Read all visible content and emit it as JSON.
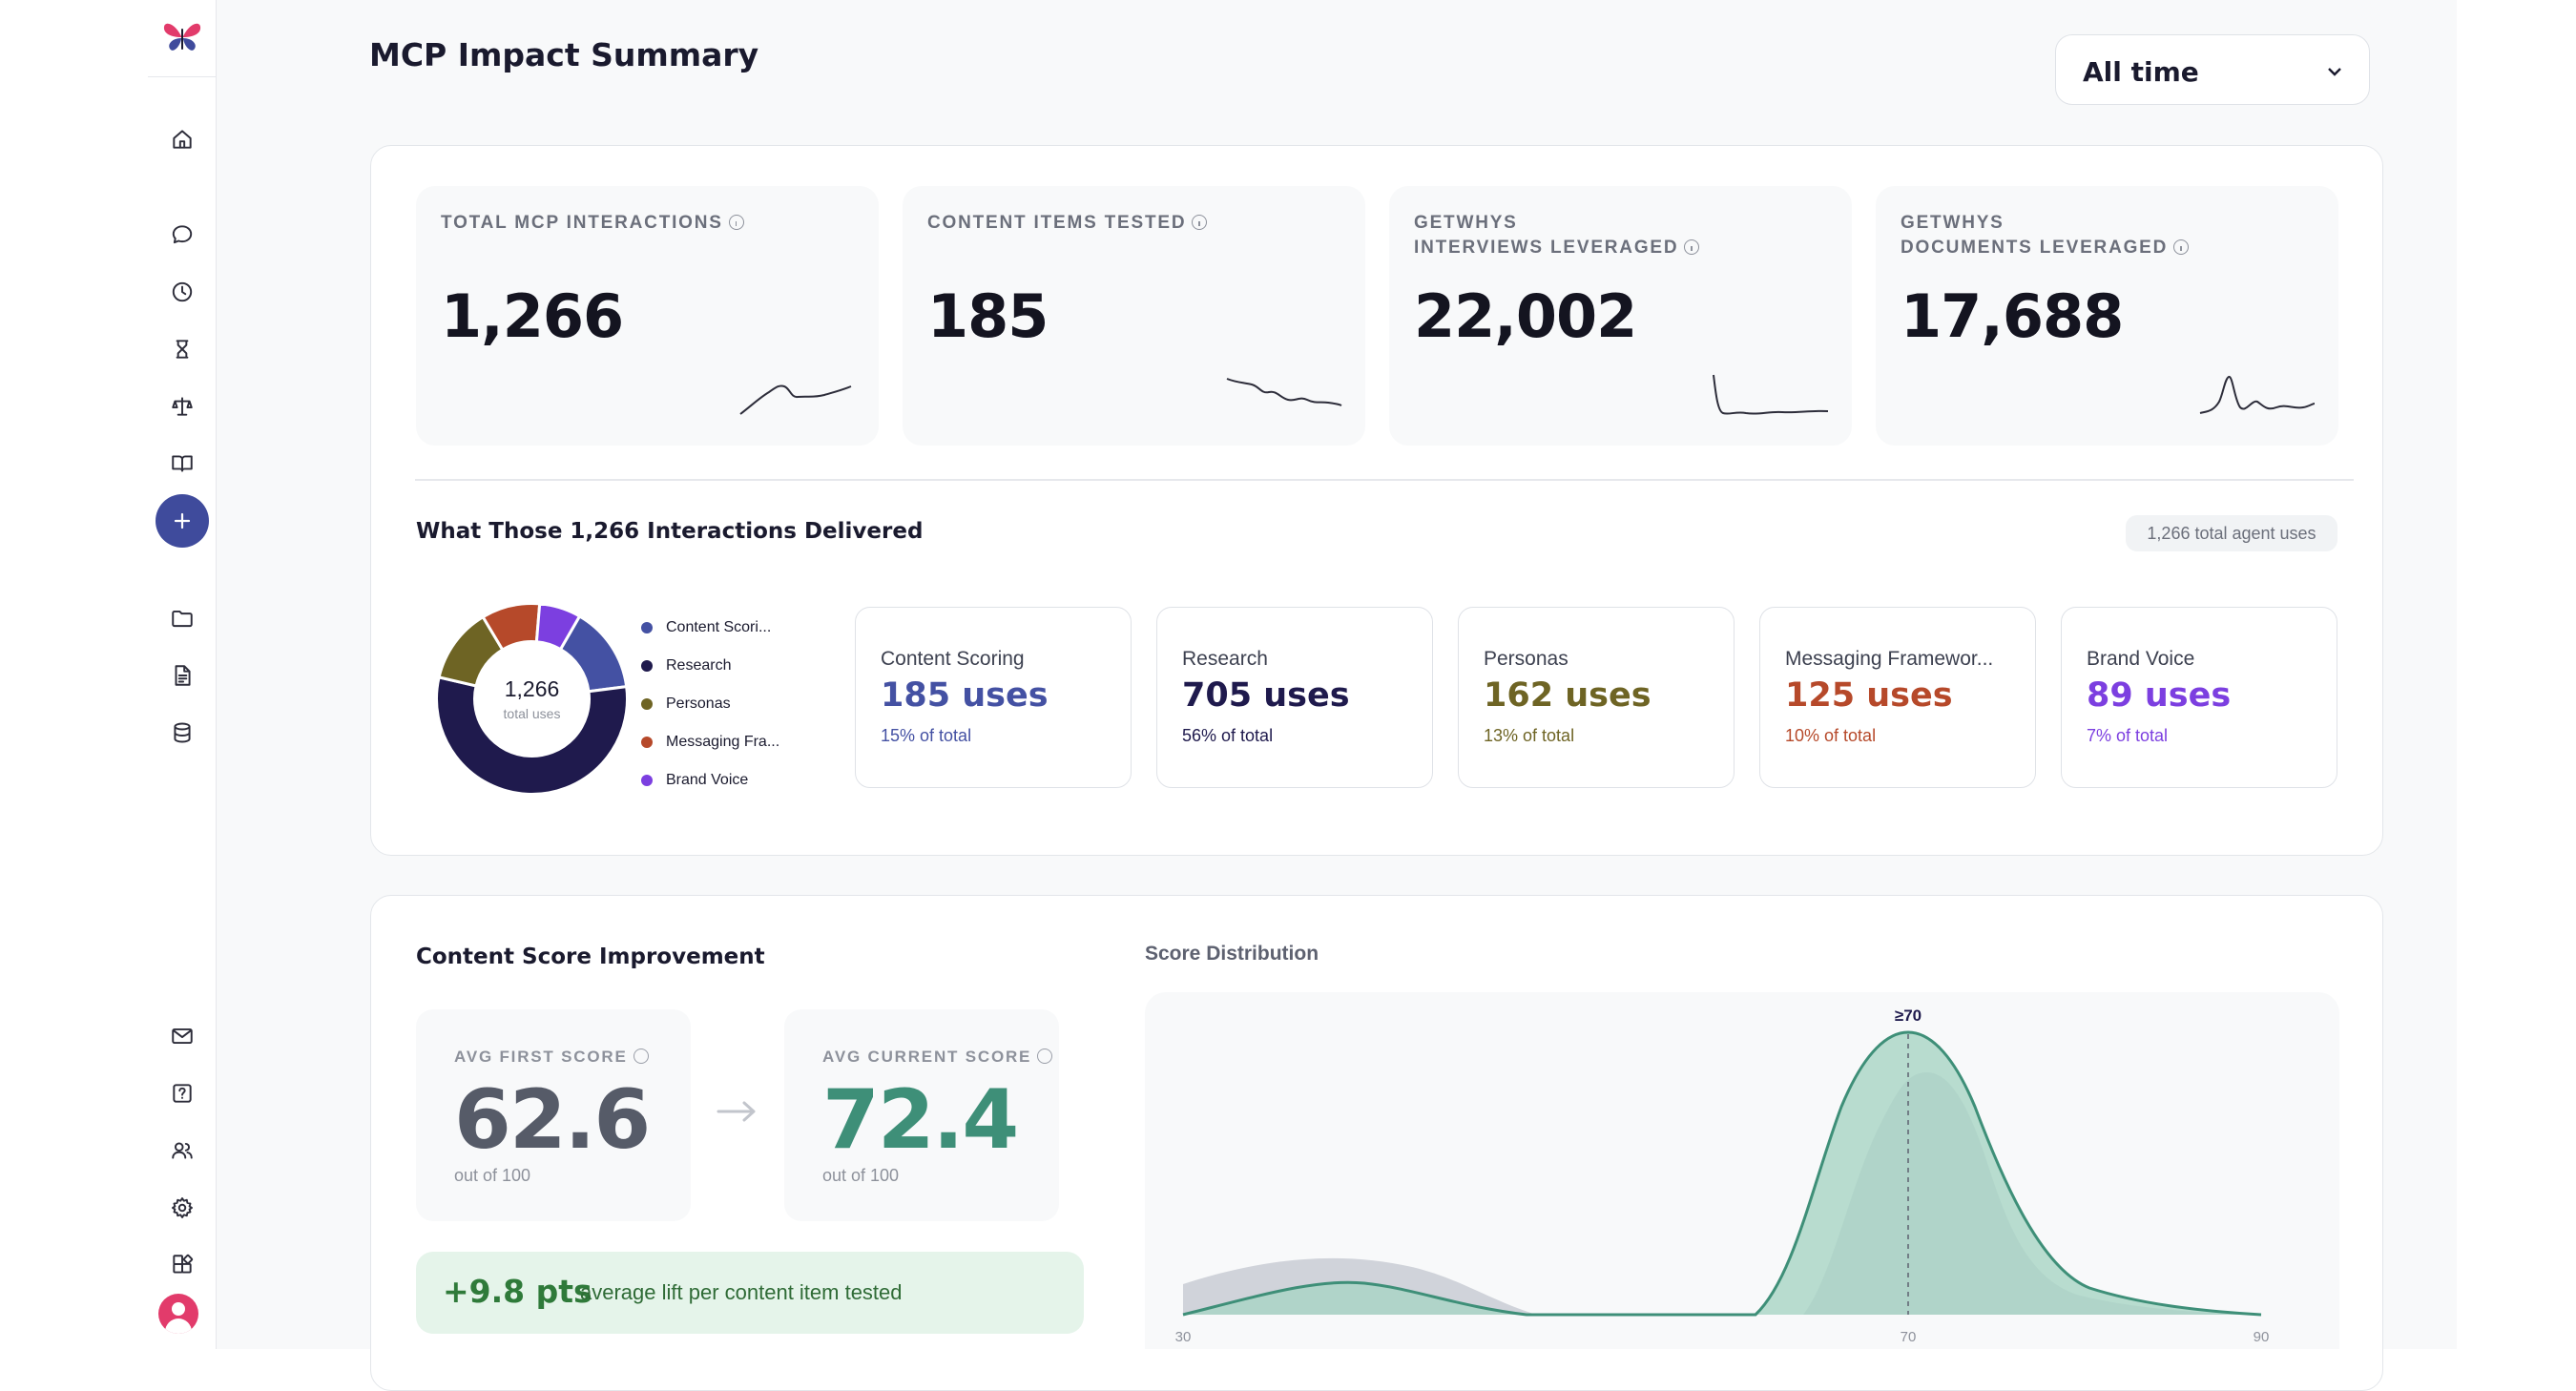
{
  "colors": {
    "scoring": "#4451a3",
    "research": "#1f1a4d",
    "personas": "#6e6424",
    "messaging": "#b6492a",
    "brand": "#7c3fe0",
    "teal": "#3e8f78",
    "gray_curve": "#c9ccd3"
  },
  "header": {
    "title": "MCP Impact Summary",
    "range_select": "All time"
  },
  "kpis": [
    {
      "label_line1": "TOTAL MCP INTERACTIONS",
      "label_line2": "",
      "value": "1,266"
    },
    {
      "label_line1": "CONTENT ITEMS TESTED",
      "label_line2": "",
      "value": "185"
    },
    {
      "label_line1": "GETWHYS",
      "label_line2": "INTERVIEWS LEVERAGED",
      "value": "22,002"
    },
    {
      "label_line1": "GETWHYS",
      "label_line2": "DOCUMENTS LEVERAGED",
      "value": "17,688"
    }
  ],
  "delivered": {
    "title": "What Those 1,266 Interactions Delivered",
    "chip": "1,266 total agent uses",
    "donut_total": "1,266",
    "donut_sub": "total uses",
    "legend": [
      "Content Scori...",
      "Research",
      "Personas",
      "Messaging Fra...",
      "Brand Voice"
    ],
    "cards": [
      {
        "title": "Content Scoring",
        "uses": "185 uses",
        "pct": "15% of total",
        "count": 185
      },
      {
        "title": "Research",
        "uses": "705 uses",
        "pct": "56% of total",
        "count": 705
      },
      {
        "title": "Personas",
        "uses": "162 uses",
        "pct": "13% of total",
        "count": 162
      },
      {
        "title": "Messaging Framewor...",
        "uses": "125 uses",
        "pct": "10% of total",
        "count": 125
      },
      {
        "title": "Brand Voice",
        "uses": "89 uses",
        "pct": "7% of total",
        "count": 89
      }
    ]
  },
  "score": {
    "title": "Content Score Improvement",
    "first_label": "AVG FIRST SCORE",
    "first_value": "62.6",
    "current_label": "AVG CURRENT SCORE",
    "current_value": "72.4",
    "out_of": "out of 100",
    "lift_value": "+9.8 pts",
    "lift_text": "average lift per content item tested"
  },
  "distribution": {
    "title": "Score Distribution",
    "marker_label": "≥70",
    "ticks": [
      "30",
      "70",
      "90"
    ]
  }
}
